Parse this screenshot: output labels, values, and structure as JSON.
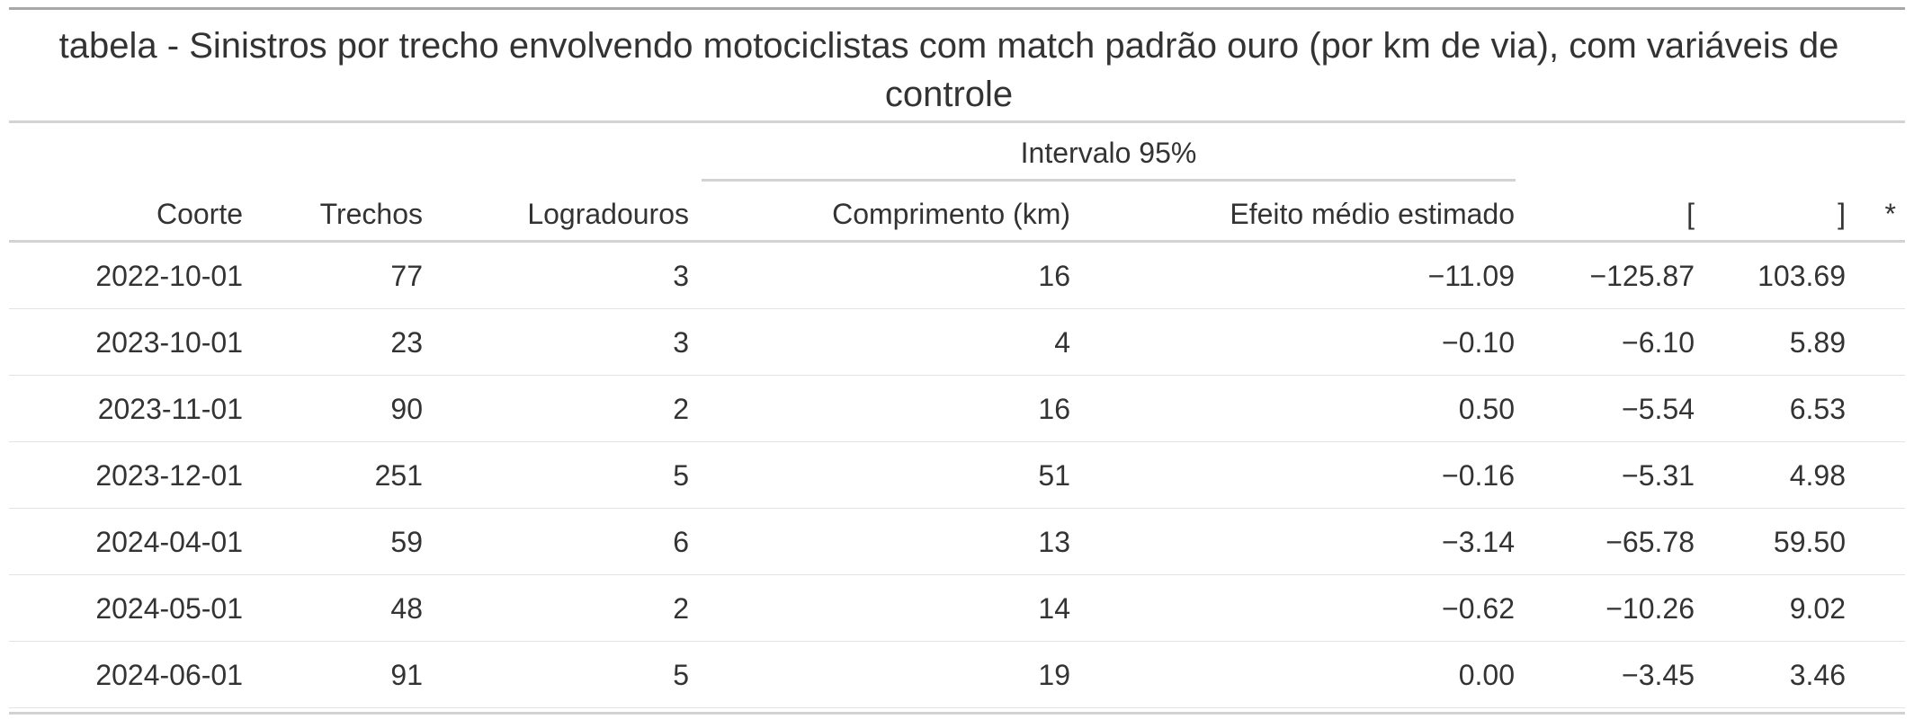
{
  "table": {
    "title": "tabela - Sinistros por trecho envolvendo motociclistas com match padrão ouro (por km de via), com variáveis de controle",
    "spanner_label": "Intervalo 95%",
    "columns": {
      "coorte": "Coorte",
      "trechos": "Trechos",
      "logradouros": "Logradouros",
      "comprimento": "Comprimento (km)",
      "efeito": "Efeito médio estimado",
      "lower": "[",
      "upper": "]",
      "sig": "*"
    },
    "rows": [
      {
        "coorte": "2022-10-01",
        "trechos": "77",
        "logradouros": "3",
        "comprimento": "16",
        "efeito": "−11.09",
        "lower": "−125.87",
        "upper": "103.69",
        "sig": ""
      },
      {
        "coorte": "2023-10-01",
        "trechos": "23",
        "logradouros": "3",
        "comprimento": "4",
        "efeito": "−0.10",
        "lower": "−6.10",
        "upper": "5.89",
        "sig": ""
      },
      {
        "coorte": "2023-11-01",
        "trechos": "90",
        "logradouros": "2",
        "comprimento": "16",
        "efeito": "0.50",
        "lower": "−5.54",
        "upper": "6.53",
        "sig": ""
      },
      {
        "coorte": "2023-12-01",
        "trechos": "251",
        "logradouros": "5",
        "comprimento": "51",
        "efeito": "−0.16",
        "lower": "−5.31",
        "upper": "4.98",
        "sig": ""
      },
      {
        "coorte": "2024-04-01",
        "trechos": "59",
        "logradouros": "6",
        "comprimento": "13",
        "efeito": "−3.14",
        "lower": "−65.78",
        "upper": "59.50",
        "sig": ""
      },
      {
        "coorte": "2024-05-01",
        "trechos": "48",
        "logradouros": "2",
        "comprimento": "14",
        "efeito": "−0.62",
        "lower": "−10.26",
        "upper": "9.02",
        "sig": ""
      },
      {
        "coorte": "2024-06-01",
        "trechos": "91",
        "logradouros": "5",
        "comprimento": "19",
        "efeito": "0.00",
        "lower": "−3.45",
        "upper": "3.46",
        "sig": ""
      }
    ]
  }
}
